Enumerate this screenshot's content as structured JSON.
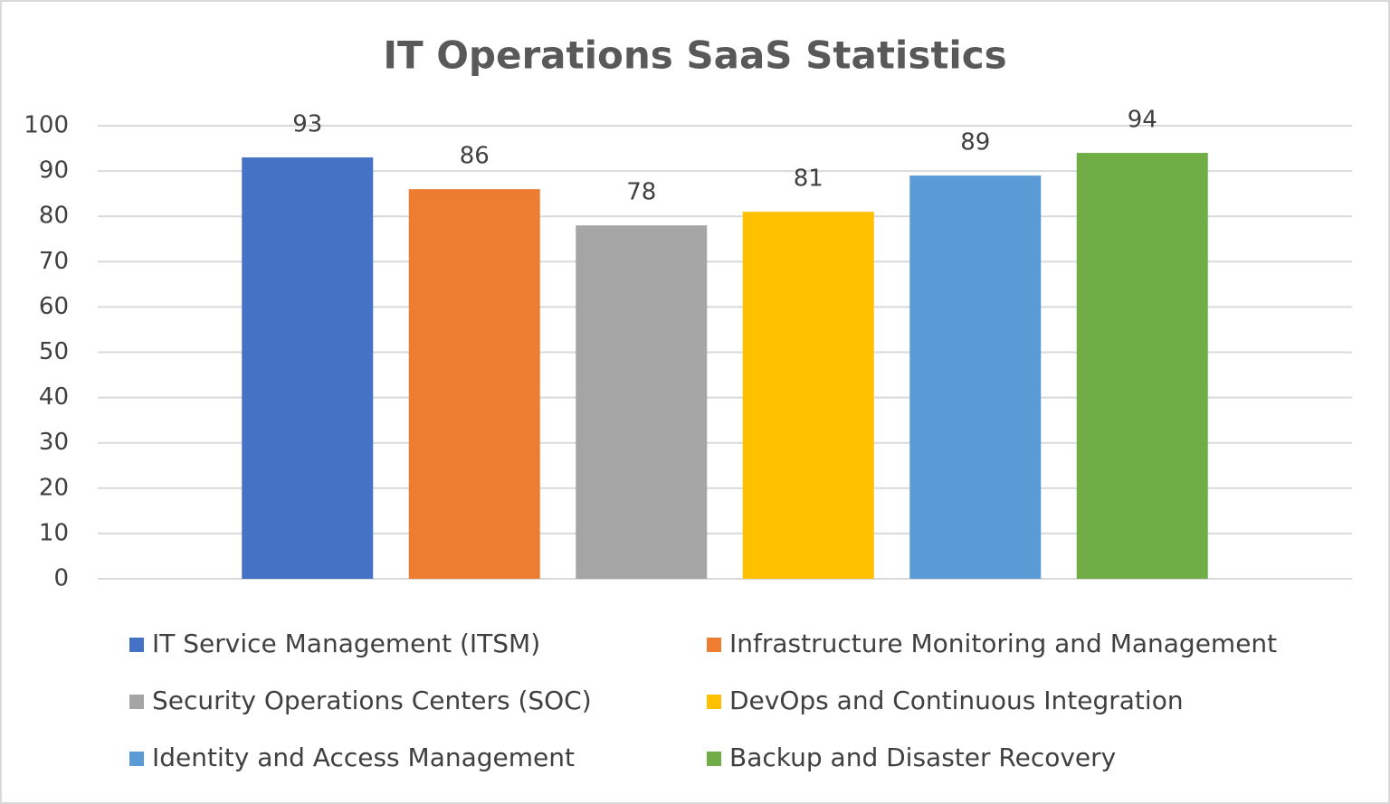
{
  "chart_data": {
    "type": "bar",
    "title": "IT Operations SaaS Statistics",
    "categories": [
      null
    ],
    "series": [
      {
        "name": "IT Service Management (ITSM)",
        "color": "#4472c4",
        "values": [
          93
        ]
      },
      {
        "name": "Infrastructure Monitoring and Management",
        "color": "#ed7d31",
        "values": [
          86
        ]
      },
      {
        "name": "Security Operations Centers (SOC)",
        "color": "#a5a5a5",
        "values": [
          78
        ]
      },
      {
        "name": "DevOps and Continuous Integration",
        "color": "#ffc000",
        "values": [
          81
        ]
      },
      {
        "name": "Identity and Access Management",
        "color": "#5b9bd5",
        "values": [
          89
        ]
      },
      {
        "name": "Backup and Disaster Recovery",
        "color": "#70ad47",
        "values": [
          94
        ]
      }
    ],
    "ylim": [
      0,
      100
    ],
    "yticks": [
      0,
      10,
      20,
      30,
      40,
      50,
      60,
      70,
      80,
      90,
      100
    ],
    "grid": true,
    "legend": "bottom"
  }
}
